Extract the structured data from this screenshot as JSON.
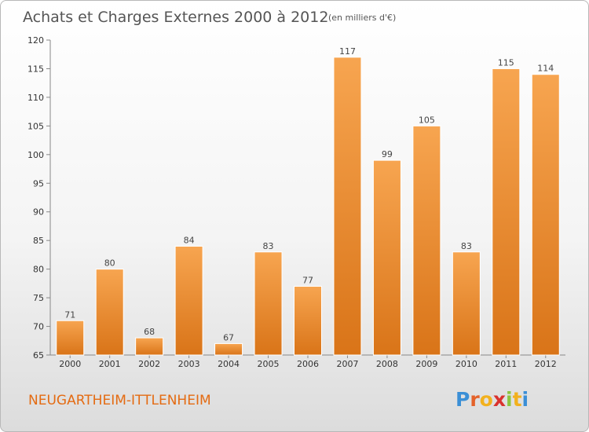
{
  "chart_data": {
    "type": "bar",
    "title": "Achats et Charges Externes 2000 à 2012",
    "subtitle": "(en milliers d'€)",
    "categories": [
      "2000",
      "2001",
      "2002",
      "2003",
      "2004",
      "2005",
      "2006",
      "2007",
      "2008",
      "2009",
      "2010",
      "2011",
      "2012"
    ],
    "values": [
      71,
      80,
      68,
      84,
      67,
      83,
      77,
      117,
      99,
      105,
      83,
      115,
      114
    ],
    "ylim": [
      65,
      120
    ],
    "yticks": [
      65,
      70,
      75,
      80,
      85,
      90,
      95,
      100,
      105,
      110,
      115,
      120
    ],
    "grid": false,
    "bar_color": "#f0963a"
  },
  "place_name": "NEUGARTHEIM-ITTLENHEIM",
  "logo": {
    "text": "Proxiti",
    "letter_colors": [
      "#3b8fd6",
      "#e4622a",
      "#f2b11e",
      "#d9322e",
      "#8cc63f",
      "#f2b11e",
      "#3b8fd6"
    ]
  }
}
